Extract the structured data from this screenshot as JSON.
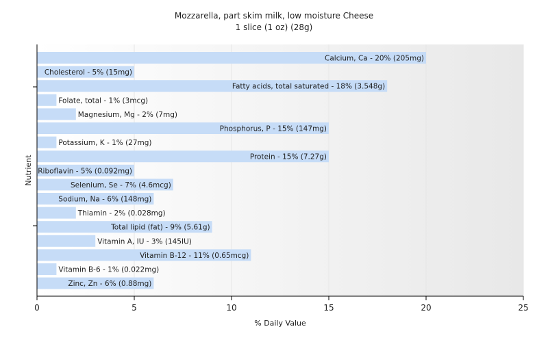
{
  "chart_data": {
    "type": "bar",
    "orientation": "horizontal",
    "title": "Mozzarella, part skim milk, low moisture Cheese",
    "subtitle": "1 slice (1 oz) (28g)",
    "xlabel": "% Daily Value",
    "ylabel": "Nutrient",
    "xlim": [
      0,
      25
    ],
    "xticks": [
      0,
      5,
      10,
      15,
      20,
      25
    ],
    "grid": true,
    "bar_color": "#c6dcf7",
    "background_gradient": [
      "#ffffff",
      "#e8e8e8"
    ],
    "bars": [
      {
        "name": "Calcium, Ca",
        "value": 20,
        "label": "Calcium, Ca - 20% (205mg)"
      },
      {
        "name": "Cholesterol",
        "value": 5,
        "label": "Cholesterol - 5% (15mg)"
      },
      {
        "name": "Fatty acids, total saturated",
        "value": 18,
        "label": "Fatty acids, total saturated - 18% (3.548g)"
      },
      {
        "name": "Folate, total",
        "value": 1,
        "label": "Folate, total - 1% (3mcg)"
      },
      {
        "name": "Magnesium, Mg",
        "value": 2,
        "label": "Magnesium, Mg - 2% (7mg)"
      },
      {
        "name": "Phosphorus, P",
        "value": 15,
        "label": "Phosphorus, P - 15% (147mg)"
      },
      {
        "name": "Potassium, K",
        "value": 1,
        "label": "Potassium, K - 1% (27mg)"
      },
      {
        "name": "Protein",
        "value": 15,
        "label": "Protein - 15% (7.27g)"
      },
      {
        "name": "Riboflavin",
        "value": 5,
        "label": "Riboflavin - 5% (0.092mg)"
      },
      {
        "name": "Selenium, Se",
        "value": 7,
        "label": "Selenium, Se - 7% (4.6mcg)"
      },
      {
        "name": "Sodium, Na",
        "value": 6,
        "label": "Sodium, Na - 6% (148mg)"
      },
      {
        "name": "Thiamin",
        "value": 2,
        "label": "Thiamin - 2% (0.028mg)"
      },
      {
        "name": "Total lipid (fat)",
        "value": 9,
        "label": "Total lipid (fat) - 9% (5.61g)"
      },
      {
        "name": "Vitamin A, IU",
        "value": 3,
        "label": "Vitamin A, IU - 3% (145IU)"
      },
      {
        "name": "Vitamin B-12",
        "value": 11,
        "label": "Vitamin B-12 - 11% (0.65mcg)"
      },
      {
        "name": "Vitamin B-6",
        "value": 1,
        "label": "Vitamin B-6 - 1% (0.022mg)"
      },
      {
        "name": "Zinc, Zn",
        "value": 6,
        "label": "Zinc, Zn - 6% (0.88mg)"
      }
    ]
  }
}
